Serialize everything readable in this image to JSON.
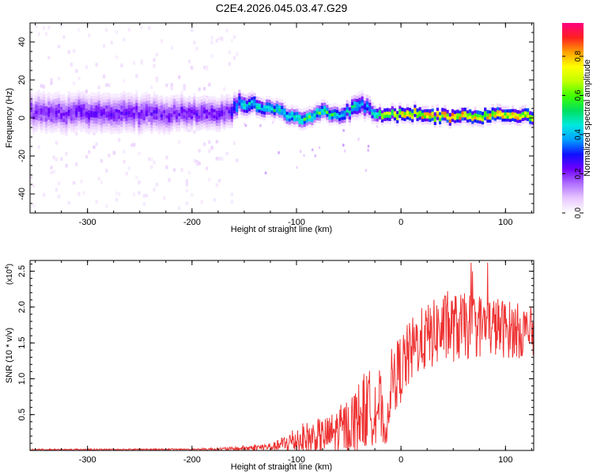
{
  "title": "C2E4.2026.045.03.47.G29",
  "chart_data": [
    {
      "type": "heatmap",
      "name": "spectrogram",
      "xlabel": "Height of straight line (km)",
      "ylabel": "Frequency (Hz)",
      "xlim": [
        -355,
        127
      ],
      "ylim": [
        -50,
        50
      ],
      "xticks": [
        -300,
        -200,
        -100,
        0,
        100
      ],
      "yticks": [
        -40,
        -20,
        0,
        20,
        40
      ],
      "colorbar": {
        "label": "Normalized spectral amplitude",
        "range": [
          0,
          0.97
        ],
        "ticks": [
          "0.0",
          "0.2",
          "0.4",
          "0.6",
          "0.8"
        ],
        "tick_values": [
          0.0,
          0.2,
          0.4,
          0.6,
          0.8
        ],
        "colors": [
          "#ffffff",
          "#e8c8ff",
          "#b070ff",
          "#7000ff",
          "#1010ff",
          "#00a0ff",
          "#00e8e0",
          "#00e060",
          "#40ff00",
          "#c0ff00",
          "#ffff00",
          "#ffa000",
          "#ff2020",
          "#ff0080"
        ]
      },
      "noise_region": {
        "x": [
          -355,
          -157
        ],
        "freq_spread": [
          -48,
          48
        ]
      },
      "ridge": [
        {
          "x": -355,
          "center": 2,
          "halfwidth": 7,
          "peak": 0.2
        },
        {
          "x": -300,
          "center": 2,
          "halfwidth": 7,
          "peak": 0.22
        },
        {
          "x": -250,
          "center": 2,
          "halfwidth": 7,
          "peak": 0.22
        },
        {
          "x": -200,
          "center": 2,
          "halfwidth": 6,
          "peak": 0.22
        },
        {
          "x": -165,
          "center": 2,
          "halfwidth": 6,
          "peak": 0.22
        },
        {
          "x": -157,
          "center": 8,
          "halfwidth": 4,
          "peak": 0.45
        },
        {
          "x": -130,
          "center": 5,
          "halfwidth": 3,
          "peak": 0.5
        },
        {
          "x": -110,
          "center": 2,
          "halfwidth": 3,
          "peak": 0.5
        },
        {
          "x": -95,
          "center": -2,
          "halfwidth": 3,
          "peak": 0.55
        },
        {
          "x": -75,
          "center": 3,
          "halfwidth": 3,
          "peak": 0.55
        },
        {
          "x": -58,
          "center": 0,
          "halfwidth": 3,
          "peak": 0.5
        },
        {
          "x": -45,
          "center": 6,
          "halfwidth": 4,
          "peak": 0.45
        },
        {
          "x": -32,
          "center": 6,
          "halfwidth": 4,
          "peak": 0.35
        },
        {
          "x": -25,
          "center": 1,
          "halfwidth": 2.5,
          "peak": 0.6
        },
        {
          "x": 0,
          "center": 1,
          "halfwidth": 2.5,
          "peak": 0.8
        },
        {
          "x": 50,
          "center": 0.5,
          "halfwidth": 2.5,
          "peak": 0.85
        },
        {
          "x": 127,
          "center": 1,
          "halfwidth": 2.5,
          "peak": 0.8
        }
      ]
    },
    {
      "type": "line",
      "name": "snr",
      "xlabel": "Height of straight line (km)",
      "ylabel": "SNR (10 * v/v)",
      "scale_label": "(x10",
      "scale_exponent": "4",
      "xlim": [
        -355,
        127
      ],
      "ylim": [
        0,
        2.65
      ],
      "xticks": [
        -300,
        -200,
        -100,
        0,
        100
      ],
      "yticks": [
        "0.5",
        "1.0",
        "1.5",
        "2.0",
        "2.5"
      ],
      "ytick_values": [
        0.5,
        1.0,
        1.5,
        2.0,
        2.5
      ],
      "color": "#ee3333",
      "envelope": [
        {
          "x": -355,
          "mean": 0.01,
          "amp": 0.01
        },
        {
          "x": -200,
          "mean": 0.015,
          "amp": 0.012
        },
        {
          "x": -160,
          "mean": 0.02,
          "amp": 0.03
        },
        {
          "x": -120,
          "mean": 0.05,
          "amp": 0.07
        },
        {
          "x": -100,
          "mean": 0.12,
          "amp": 0.25
        },
        {
          "x": -70,
          "mean": 0.18,
          "amp": 0.3
        },
        {
          "x": -50,
          "mean": 0.3,
          "amp": 0.45
        },
        {
          "x": -35,
          "mean": 0.5,
          "amp": 0.6
        },
        {
          "x": -20,
          "mean": 0.6,
          "amp": 0.6
        },
        {
          "x": -15,
          "mean": 0.08,
          "amp": 0.1
        },
        {
          "x": -10,
          "mean": 0.9,
          "amp": 0.5
        },
        {
          "x": 0,
          "mean": 1.1,
          "amp": 0.55
        },
        {
          "x": 15,
          "mean": 1.45,
          "amp": 0.5
        },
        {
          "x": 40,
          "mean": 1.65,
          "amp": 0.55
        },
        {
          "x": 80,
          "mean": 1.7,
          "amp": 0.5
        },
        {
          "x": 127,
          "mean": 1.6,
          "amp": 0.4
        }
      ]
    }
  ]
}
